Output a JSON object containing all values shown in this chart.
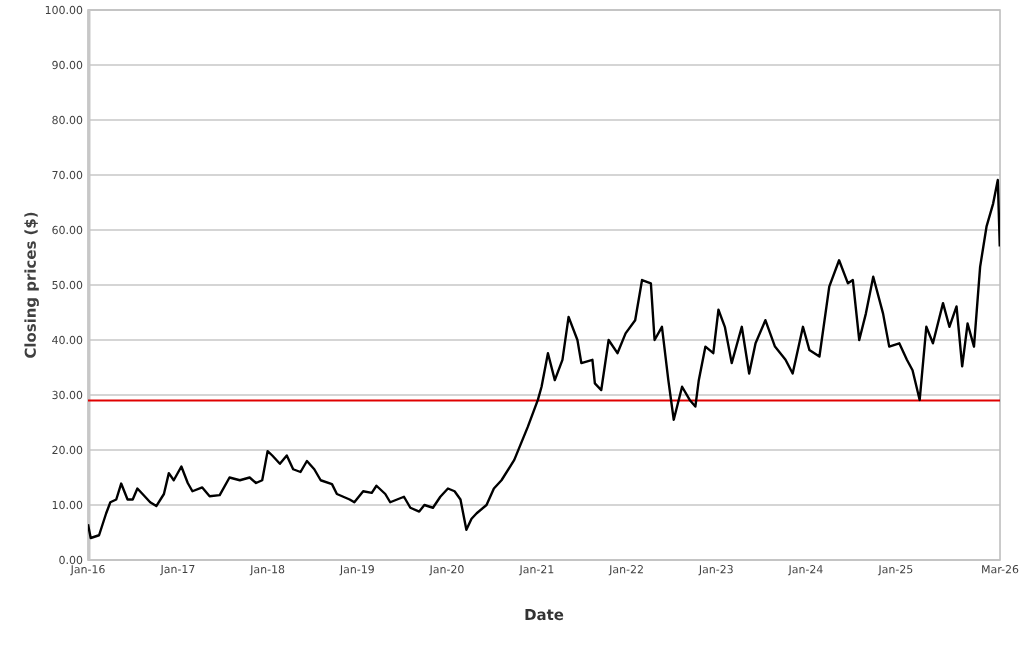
{
  "chart_data": {
    "type": "line",
    "xlabel": "Date",
    "ylabel": "Closing prices ($)",
    "xlim": [
      "2016-01-01",
      "2026-03-01"
    ],
    "xticks": [
      {
        "value": "2016-01-01",
        "label": "Jan-16"
      },
      {
        "value": "2017-01-01",
        "label": "Jan-17"
      },
      {
        "value": "2018-01-01",
        "label": "Jan-18"
      },
      {
        "value": "2019-01-01",
        "label": "Jan-19"
      },
      {
        "value": "2020-01-01",
        "label": "Jan-20"
      },
      {
        "value": "2021-01-01",
        "label": "Jan-21"
      },
      {
        "value": "2022-01-01",
        "label": "Jan-22"
      },
      {
        "value": "2023-01-01",
        "label": "Jan-23"
      },
      {
        "value": "2024-01-01",
        "label": "Jan-24"
      },
      {
        "value": "2025-01-01",
        "label": "Jan-25"
      },
      {
        "value": "2026-03-01",
        "label": "Mar-26"
      }
    ],
    "ylim": [
      0,
      100
    ],
    "yticks": [
      {
        "value": 0,
        "label": "0.00"
      },
      {
        "value": 10,
        "label": "10.00"
      },
      {
        "value": 20,
        "label": "20.00"
      },
      {
        "value": 30,
        "label": "30.00"
      },
      {
        "value": 40,
        "label": "40.00"
      },
      {
        "value": 50,
        "label": "50.00"
      },
      {
        "value": 60,
        "label": "60.00"
      },
      {
        "value": 70,
        "label": "70.00"
      },
      {
        "value": 80,
        "label": "80.00"
      },
      {
        "value": 90,
        "label": "90.00"
      },
      {
        "value": 100,
        "label": "100.00"
      }
    ],
    "grid": "y",
    "marker": "none",
    "line_style": "solid",
    "ref_lines": [
      {
        "axis": "y",
        "value": 29,
        "color": "#e00000"
      }
    ],
    "series": [
      {
        "color": "#000000",
        "x": [
          "2016-01-01",
          "2016-01-12",
          "2016-02-15",
          "2016-03-15",
          "2016-04-01",
          "2016-04-25",
          "2016-05-15",
          "2016-06-10",
          "2016-07-01",
          "2016-07-20",
          "2016-08-10",
          "2016-09-10",
          "2016-10-05",
          "2016-11-05",
          "2016-11-25",
          "2016-12-15",
          "2017-01-15",
          "2017-02-10",
          "2017-03-01",
          "2017-04-10",
          "2017-05-10",
          "2017-06-20",
          "2017-07-30",
          "2017-09-10",
          "2017-10-20",
          "2017-11-15",
          "2017-12-10",
          "2018-01-01",
          "2018-01-20",
          "2018-02-20",
          "2018-03-20",
          "2018-04-15",
          "2018-05-15",
          "2018-06-10",
          "2018-07-10",
          "2018-08-05",
          "2018-09-20",
          "2018-10-10",
          "2018-12-01",
          "2018-12-20",
          "2019-01-25",
          "2019-03-01",
          "2019-03-20",
          "2019-04-25",
          "2019-05-15",
          "2019-07-10",
          "2019-08-05",
          "2019-09-10",
          "2019-10-01",
          "2019-11-05",
          "2019-12-05",
          "2020-01-05",
          "2020-02-01",
          "2020-02-25",
          "2020-03-20",
          "2020-04-10",
          "2020-05-01",
          "2020-06-10",
          "2020-07-10",
          "2020-08-10",
          "2020-10-01",
          "2020-11-25",
          "2021-01-05",
          "2021-01-20",
          "2021-02-15",
          "2021-03-15",
          "2021-04-15",
          "2021-05-10",
          "2021-06-15",
          "2021-07-01",
          "2021-08-15",
          "2021-08-25",
          "2021-09-20",
          "2021-10-20",
          "2021-11-25",
          "2021-12-28",
          "2022-02-05",
          "2022-03-05",
          "2022-04-10",
          "2022-04-25",
          "2022-05-25",
          "2022-06-20",
          "2022-07-12",
          "2022-08-15",
          "2022-09-15",
          "2022-10-08",
          "2022-10-22",
          "2022-11-18",
          "2022-12-20",
          "2023-01-10",
          "2023-02-05",
          "2023-03-05",
          "2023-04-15",
          "2023-05-15",
          "2023-06-10",
          "2023-07-20",
          "2023-08-28",
          "2023-10-10",
          "2023-11-08",
          "2023-12-20",
          "2024-01-15",
          "2024-02-25",
          "2024-04-05",
          "2024-05-15",
          "2024-06-20",
          "2024-07-10",
          "2024-08-05",
          "2024-09-01",
          "2024-10-01",
          "2024-11-10",
          "2024-12-05",
          "2025-01-15",
          "2025-02-15",
          "2025-03-10",
          "2025-04-08",
          "2025-05-05",
          "2025-06-01",
          "2025-07-12",
          "2025-08-07",
          "2025-09-05",
          "2025-09-28",
          "2025-10-20",
          "2025-11-15",
          "2025-12-10",
          "2026-01-05",
          "2026-02-01",
          "2026-02-20",
          "2026-02-28"
        ],
        "values": [
          6.5,
          4.0,
          4.5,
          8.5,
          10.5,
          11.0,
          13.9,
          11.0,
          11.0,
          13.0,
          12.0,
          10.5,
          9.8,
          12.0,
          15.8,
          14.5,
          17.0,
          14.0,
          12.5,
          13.2,
          11.6,
          11.8,
          15.0,
          14.5,
          15.0,
          14.0,
          14.5,
          19.8,
          19.0,
          17.5,
          19.0,
          16.5,
          16.0,
          18.0,
          16.5,
          14.5,
          13.8,
          12.0,
          11.0,
          10.5,
          12.5,
          12.2,
          13.5,
          12.0,
          10.5,
          11.5,
          9.5,
          8.8,
          10.0,
          9.5,
          11.5,
          13.0,
          12.5,
          11.0,
          5.5,
          7.5,
          8.5,
          10.0,
          13.0,
          14.5,
          18.2,
          24.2,
          29.1,
          31.5,
          37.6,
          32.7,
          36.4,
          44.2,
          40.0,
          35.8,
          36.4,
          32.1,
          30.9,
          40.0,
          37.6,
          41.2,
          43.6,
          50.9,
          50.3,
          40.0,
          42.4,
          32.7,
          25.5,
          31.5,
          29.1,
          27.9,
          32.7,
          38.8,
          37.6,
          45.5,
          42.4,
          35.8,
          42.4,
          33.9,
          39.4,
          43.6,
          38.8,
          36.4,
          33.9,
          42.4,
          38.2,
          37.0,
          49.7,
          54.5,
          50.3,
          50.9,
          40.0,
          44.8,
          51.5,
          44.8,
          38.8,
          39.4,
          36.4,
          34.5,
          29.1,
          42.4,
          39.4,
          46.7,
          42.4,
          46.1,
          35.2,
          43.0,
          38.8,
          53.3,
          60.6,
          64.8,
          69.1,
          57.0
        ]
      }
    ]
  }
}
